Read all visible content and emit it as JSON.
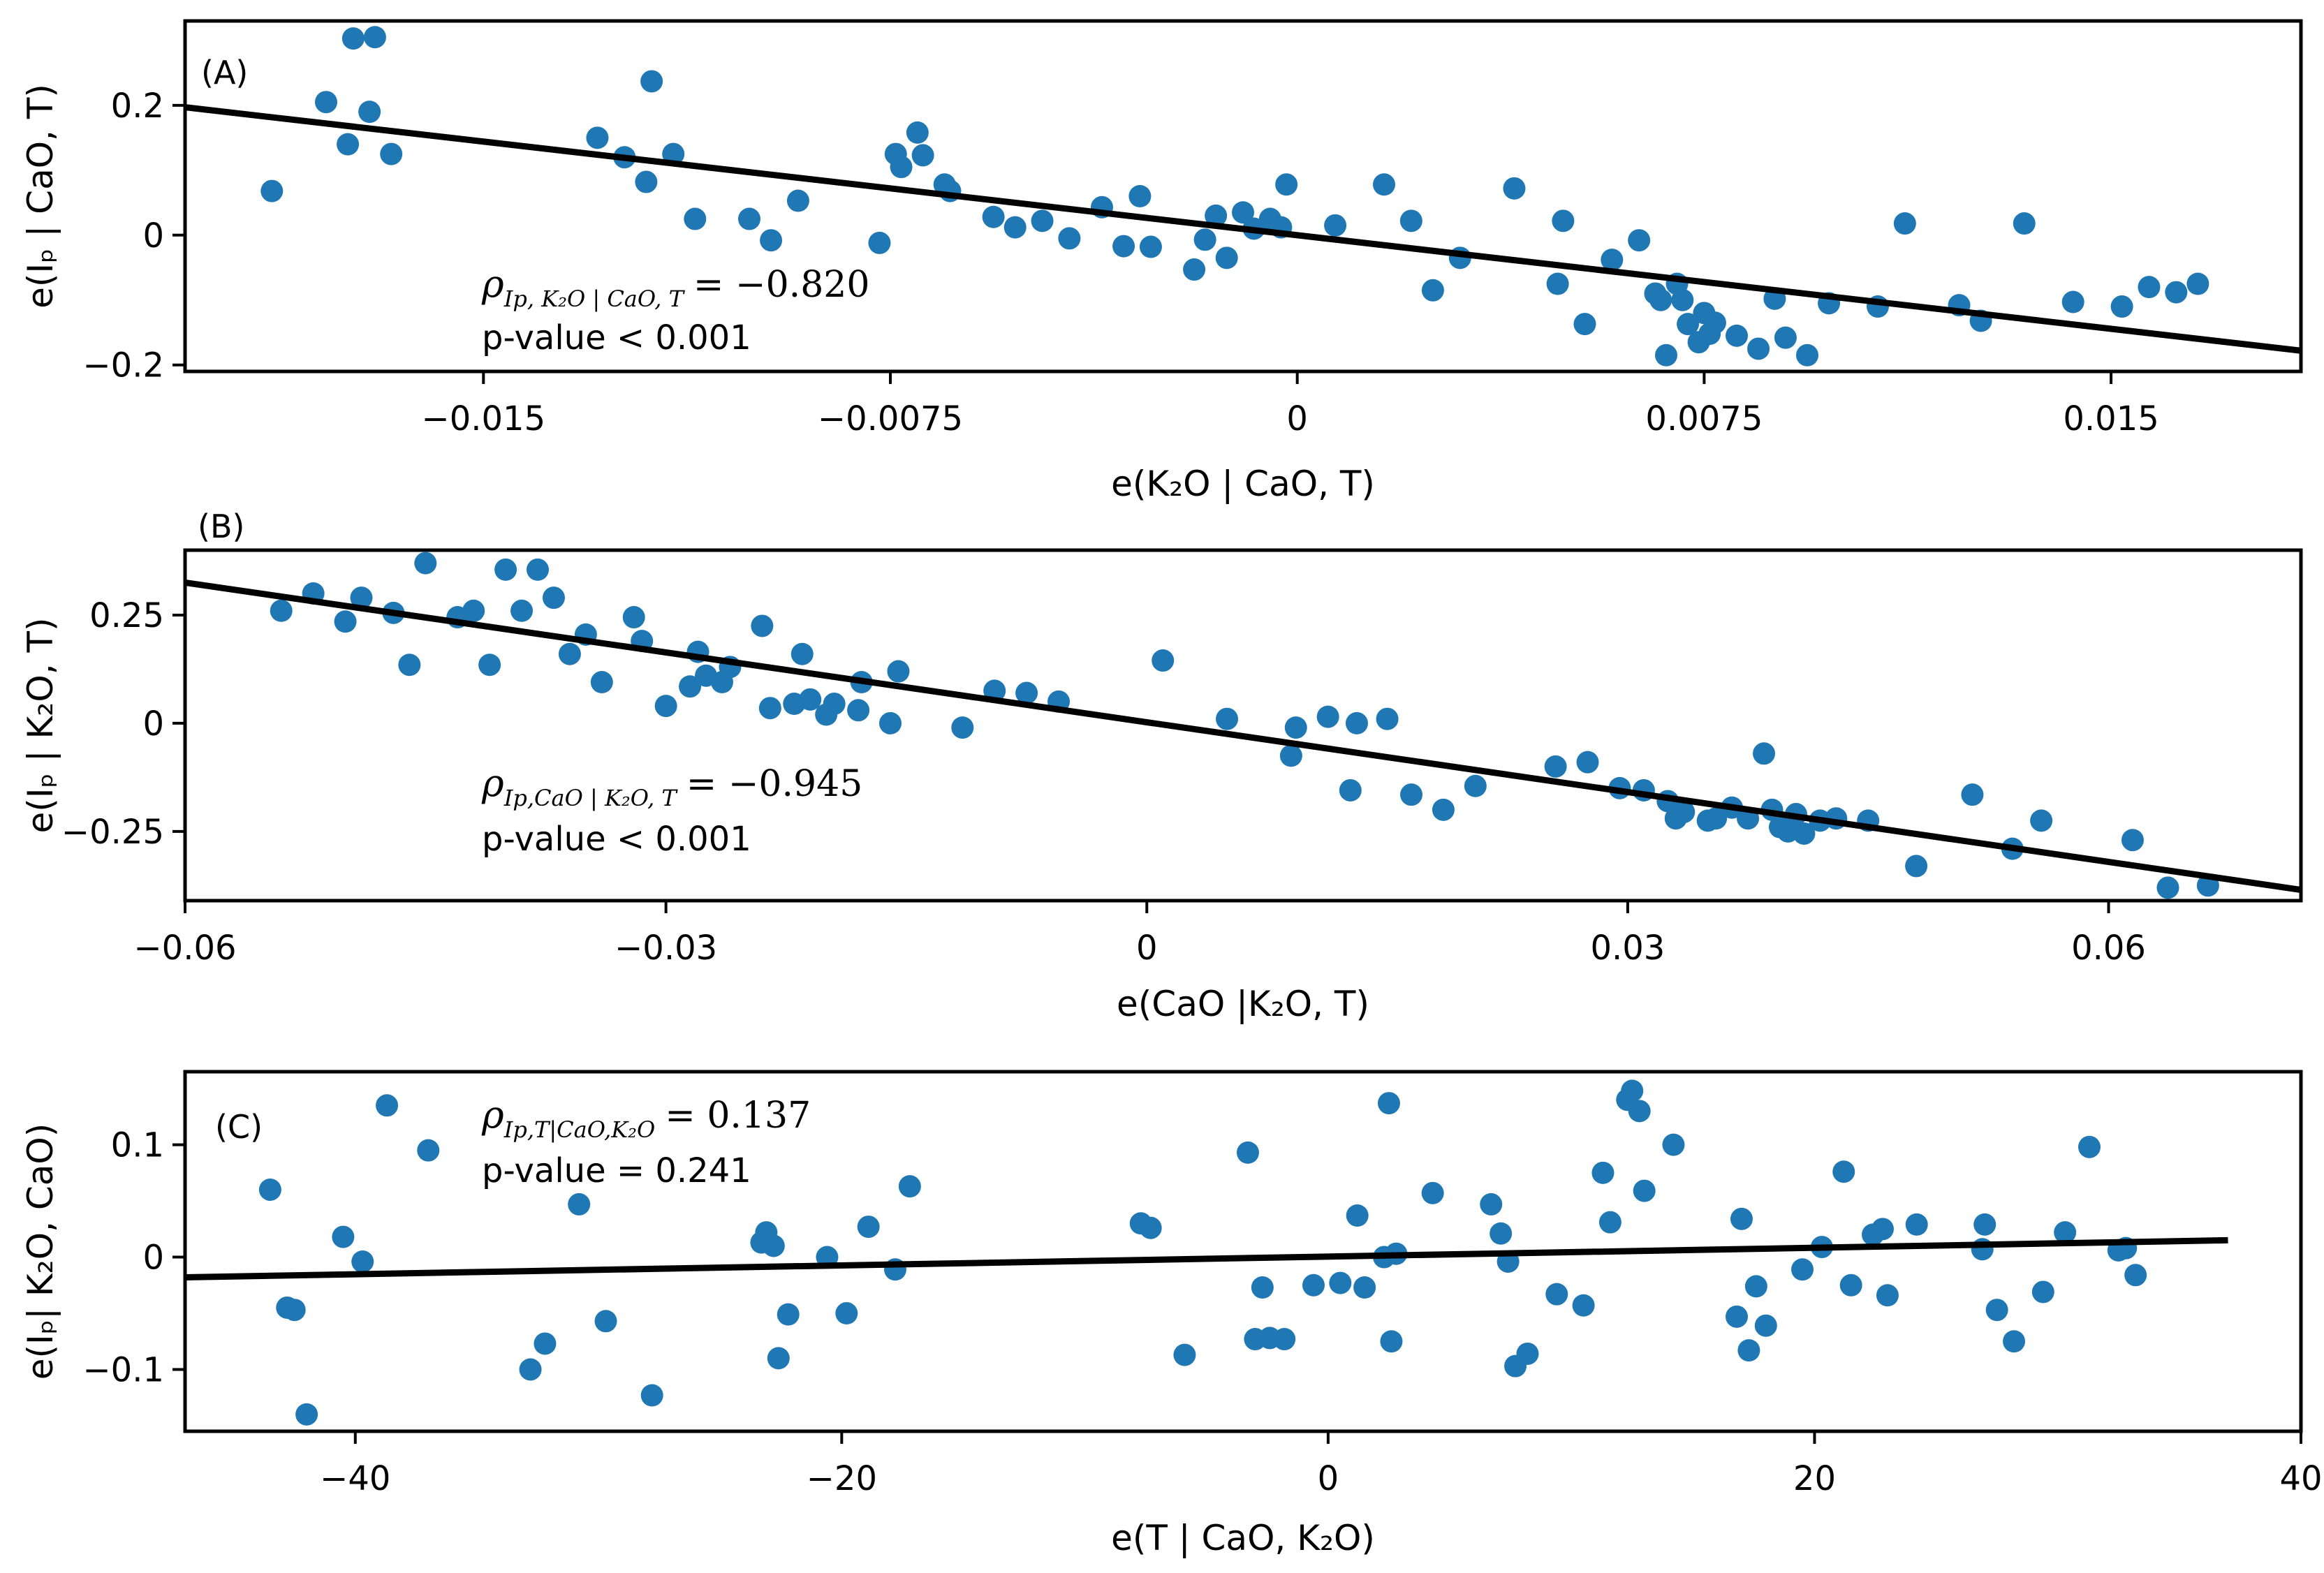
{
  "chart_data": [
    {
      "type": "scatter",
      "panel_label": "(A)",
      "xlabel": "e(K₂O | CaO, T)",
      "ylabel": "e(Iₚ | CaO, T)",
      "xlim": [
        -0.0205,
        0.0185
      ],
      "ylim": [
        -0.21,
        0.33
      ],
      "xticks": [
        -0.015,
        -0.0075,
        0,
        0.0075,
        0.015
      ],
      "xtick_labels": [
        "−0.015",
        "−0.0075",
        "0",
        "0.0075",
        "0.015"
      ],
      "yticks": [
        -0.2,
        0,
        0.2
      ],
      "ytick_labels": [
        "−0.2",
        "0",
        "0.2"
      ],
      "rho_symbol": "ρ",
      "rho_subscript": "Ip, K₂O | CaO, T",
      "rho_value": "= −0.820",
      "p_value": "p-value < 0.001",
      "fit": {
        "x": [
          -0.0205,
          0.0185
        ],
        "y": [
          0.197,
          -0.178
        ]
      },
      "points": [
        [
          -0.0189,
          0.068
        ],
        [
          -0.0179,
          0.205
        ],
        [
          -0.0175,
          0.14
        ],
        [
          -0.0174,
          0.303
        ],
        [
          -0.0171,
          0.19
        ],
        [
          -0.017,
          0.305
        ],
        [
          -0.0167,
          0.125
        ],
        [
          -0.0129,
          0.15
        ],
        [
          -0.0124,
          0.12
        ],
        [
          -0.012,
          0.082
        ],
        [
          -0.0119,
          0.237
        ],
        [
          -0.0115,
          0.125
        ],
        [
          -0.0111,
          0.025
        ],
        [
          -0.0101,
          0.025
        ],
        [
          -0.0097,
          -0.008
        ],
        [
          -0.0092,
          0.053
        ],
        [
          -0.0077,
          -0.012
        ],
        [
          -0.0074,
          0.125
        ],
        [
          -0.0073,
          0.105
        ],
        [
          -0.007,
          0.158
        ],
        [
          -0.0069,
          0.123
        ],
        [
          -0.0065,
          0.078
        ],
        [
          -0.0064,
          0.068
        ],
        [
          -0.0056,
          0.028
        ],
        [
          -0.0052,
          0.012
        ],
        [
          -0.0047,
          0.022
        ],
        [
          -0.0042,
          -0.005
        ],
        [
          -0.0036,
          0.043
        ],
        [
          -0.0032,
          -0.017
        ],
        [
          -0.0029,
          0.06
        ],
        [
          -0.0027,
          -0.018
        ],
        [
          -0.0019,
          -0.053
        ],
        [
          -0.0017,
          -0.007
        ],
        [
          -0.0015,
          0.03
        ],
        [
          -0.0013,
          -0.035
        ],
        [
          -0.001,
          0.035
        ],
        [
          -0.0008,
          0.01
        ],
        [
          -0.0005,
          0.025
        ],
        [
          -0.0003,
          0.012
        ],
        [
          -0.0002,
          0.078
        ],
        [
          0.0007,
          0.015
        ],
        [
          0.0016,
          0.078
        ],
        [
          0.0021,
          0.022
        ],
        [
          0.0025,
          -0.085
        ],
        [
          0.003,
          -0.035
        ],
        [
          0.004,
          0.072
        ],
        [
          0.0048,
          -0.075
        ],
        [
          0.0049,
          0.022
        ],
        [
          0.0053,
          -0.137
        ],
        [
          0.0058,
          -0.038
        ],
        [
          0.0063,
          -0.008
        ],
        [
          0.0066,
          -0.09
        ],
        [
          0.0067,
          -0.1
        ],
        [
          0.0068,
          -0.185
        ],
        [
          0.007,
          -0.075
        ],
        [
          0.0071,
          -0.1
        ],
        [
          0.0072,
          -0.137
        ],
        [
          0.0074,
          -0.165
        ],
        [
          0.0075,
          -0.12
        ],
        [
          0.0076,
          -0.152
        ],
        [
          0.0077,
          -0.135
        ],
        [
          0.0081,
          -0.155
        ],
        [
          0.0085,
          -0.175
        ],
        [
          0.0088,
          -0.098
        ],
        [
          0.009,
          -0.158
        ],
        [
          0.0094,
          -0.185
        ],
        [
          0.0098,
          -0.105
        ],
        [
          0.0107,
          -0.11
        ],
        [
          0.0112,
          0.018
        ],
        [
          0.0122,
          -0.108
        ],
        [
          0.0126,
          -0.132
        ],
        [
          0.0134,
          0.018
        ],
        [
          0.0143,
          -0.103
        ],
        [
          0.0152,
          -0.11
        ],
        [
          0.0157,
          -0.08
        ],
        [
          0.0162,
          -0.088
        ],
        [
          0.0166,
          -0.075
        ]
      ]
    },
    {
      "type": "scatter",
      "panel_label": "(B)",
      "xlabel": "e(CaO |K₂O,  T)",
      "ylabel": "e(Iₚ | K₂O, T)",
      "xlim": [
        -0.06,
        0.072
      ],
      "ylim": [
        -0.41,
        0.4
      ],
      "xticks": [
        -0.06,
        -0.03,
        0,
        0.03,
        0.06
      ],
      "xtick_labels": [
        "−0.06",
        "−0.03",
        "0",
        "0.03",
        "0.06"
      ],
      "yticks": [
        -0.25,
        0,
        0.25
      ],
      "ytick_labels": [
        "−0.25",
        "0",
        "0.25"
      ],
      "rho_symbol": "ρ",
      "rho_subscript": "Ip,CaO | K₂O, T",
      "rho_value": "= −0.945",
      "p_value": "p-value < 0.001",
      "fit": {
        "x": [
          -0.06,
          0.072
        ],
        "y": [
          0.325,
          -0.385
        ]
      },
      "points": [
        [
          -0.054,
          0.26
        ],
        [
          -0.052,
          0.3
        ],
        [
          -0.05,
          0.235
        ],
        [
          -0.049,
          0.29
        ],
        [
          -0.047,
          0.255
        ],
        [
          -0.046,
          0.135
        ],
        [
          -0.045,
          0.37
        ],
        [
          -0.043,
          0.245
        ],
        [
          -0.042,
          0.26
        ],
        [
          -0.041,
          0.135
        ],
        [
          -0.04,
          0.355
        ],
        [
          -0.039,
          0.26
        ],
        [
          -0.038,
          0.355
        ],
        [
          -0.037,
          0.29
        ],
        [
          -0.036,
          0.16
        ],
        [
          -0.035,
          0.205
        ],
        [
          -0.034,
          0.095
        ],
        [
          -0.032,
          0.245
        ],
        [
          -0.0315,
          0.19
        ],
        [
          -0.03,
          0.04
        ],
        [
          -0.0285,
          0.085
        ],
        [
          -0.028,
          0.165
        ],
        [
          -0.0275,
          0.11
        ],
        [
          -0.0265,
          0.095
        ],
        [
          -0.026,
          0.13
        ],
        [
          -0.024,
          0.225
        ],
        [
          -0.0235,
          0.035
        ],
        [
          -0.022,
          0.045
        ],
        [
          -0.0215,
          0.16
        ],
        [
          -0.021,
          0.055
        ],
        [
          -0.02,
          0.02
        ],
        [
          -0.0195,
          0.045
        ],
        [
          -0.018,
          0.03
        ],
        [
          -0.0178,
          0.095
        ],
        [
          -0.016,
          0.0
        ],
        [
          -0.0155,
          0.12
        ],
        [
          -0.0115,
          -0.01
        ],
        [
          -0.0095,
          0.075
        ],
        [
          -0.0075,
          0.07
        ],
        [
          -0.0055,
          0.05
        ],
        [
          0.001,
          0.145
        ],
        [
          0.005,
          0.01
        ],
        [
          0.009,
          -0.075
        ],
        [
          0.0093,
          -0.01
        ],
        [
          0.0113,
          0.015
        ],
        [
          0.0127,
          -0.155
        ],
        [
          0.0131,
          0.0
        ],
        [
          0.015,
          0.01
        ],
        [
          0.0165,
          -0.165
        ],
        [
          0.0185,
          -0.2
        ],
        [
          0.0205,
          -0.145
        ],
        [
          0.0255,
          -0.1
        ],
        [
          0.0275,
          -0.09
        ],
        [
          0.0295,
          -0.15
        ],
        [
          0.031,
          -0.155
        ],
        [
          0.0325,
          -0.18
        ],
        [
          0.033,
          -0.22
        ],
        [
          0.0335,
          -0.205
        ],
        [
          0.035,
          -0.225
        ],
        [
          0.0355,
          -0.22
        ],
        [
          0.0365,
          -0.195
        ],
        [
          0.0375,
          -0.22
        ],
        [
          0.0385,
          -0.07
        ],
        [
          0.039,
          -0.2
        ],
        [
          0.0395,
          -0.24
        ],
        [
          0.04,
          -0.25
        ],
        [
          0.0405,
          -0.21
        ],
        [
          0.041,
          -0.255
        ],
        [
          0.042,
          -0.225
        ],
        [
          0.043,
          -0.22
        ],
        [
          0.045,
          -0.225
        ],
        [
          0.048,
          -0.33
        ],
        [
          0.0515,
          -0.165
        ],
        [
          0.054,
          -0.29
        ],
        [
          0.0558,
          -0.225
        ],
        [
          0.0615,
          -0.27
        ],
        [
          0.0637,
          -0.38
        ],
        [
          0.0662,
          -0.375
        ]
      ]
    },
    {
      "type": "scatter",
      "panel_label": "(C)",
      "xlabel": "e(T | CaO, K₂O)",
      "ylabel": "e(Iₚ| K₂O, CaO)",
      "xlim": [
        -47,
        40
      ],
      "ylim": [
        -0.155,
        0.165
      ],
      "xticks": [
        -40,
        -20,
        0,
        20,
        40
      ],
      "xtick_labels": [
        "−40",
        "−20",
        "0",
        "20",
        "40"
      ],
      "yticks": [
        -0.1,
        0,
        0.1
      ],
      "ytick_labels": [
        "−0.1",
        "0",
        "0.1"
      ],
      "rho_symbol": "ρ",
      "rho_subscript": "Ip,T|CaO,K₂O",
      "rho_value": "= 0.137",
      "p_value": "p-value = 0.241",
      "fit": {
        "x": [
          -47,
          37
        ],
        "y": [
          -0.018,
          0.015
        ]
      },
      "points": [
        [
          -43.5,
          0.06
        ],
        [
          -42.8,
          -0.045
        ],
        [
          -42.5,
          -0.047
        ],
        [
          -42.0,
          -0.14
        ],
        [
          -40.5,
          0.018
        ],
        [
          -39.7,
          -0.004
        ],
        [
          -38.7,
          0.135
        ],
        [
          -37.0,
          0.095
        ],
        [
          -32.8,
          -0.1
        ],
        [
          -32.2,
          -0.077
        ],
        [
          -30.8,
          0.047
        ],
        [
          -29.7,
          -0.057
        ],
        [
          -27.8,
          -0.123
        ],
        [
          -23.3,
          0.013
        ],
        [
          -23.1,
          0.022
        ],
        [
          -22.8,
          0.01
        ],
        [
          -22.6,
          -0.09
        ],
        [
          -22.2,
          -0.051
        ],
        [
          -20.6,
          0.0
        ],
        [
          -19.8,
          -0.05
        ],
        [
          -18.9,
          0.027
        ],
        [
          -17.8,
          -0.011
        ],
        [
          -17.2,
          0.063
        ],
        [
          -7.7,
          0.03
        ],
        [
          -7.3,
          0.026
        ],
        [
          -5.9,
          -0.087
        ],
        [
          -3.3,
          0.093
        ],
        [
          -3.0,
          -0.073
        ],
        [
          -2.7,
          -0.027
        ],
        [
          -2.4,
          -0.072
        ],
        [
          -1.8,
          -0.073
        ],
        [
          -0.6,
          -0.025
        ],
        [
          0.5,
          -0.023
        ],
        [
          1.2,
          0.037
        ],
        [
          1.5,
          -0.027
        ],
        [
          2.3,
          0.0
        ],
        [
          2.5,
          0.137
        ],
        [
          2.6,
          -0.075
        ],
        [
          2.8,
          0.003
        ],
        [
          4.3,
          0.057
        ],
        [
          6.7,
          0.047
        ],
        [
          7.1,
          0.021
        ],
        [
          7.4,
          -0.004
        ],
        [
          7.7,
          -0.097
        ],
        [
          8.2,
          -0.086
        ],
        [
          9.4,
          -0.033
        ],
        [
          10.5,
          -0.043
        ],
        [
          11.3,
          0.075
        ],
        [
          11.6,
          0.031
        ],
        [
          12.3,
          0.14
        ],
        [
          12.5,
          0.148
        ],
        [
          12.8,
          0.13
        ],
        [
          13.0,
          0.059
        ],
        [
          14.2,
          0.1
        ],
        [
          16.8,
          -0.053
        ],
        [
          17.0,
          0.034
        ],
        [
          17.3,
          -0.083
        ],
        [
          17.6,
          -0.026
        ],
        [
          18.0,
          -0.061
        ],
        [
          19.5,
          -0.011
        ],
        [
          20.3,
          0.009
        ],
        [
          21.2,
          0.076
        ],
        [
          21.5,
          -0.025
        ],
        [
          22.4,
          0.02
        ],
        [
          22.8,
          0.025
        ],
        [
          23.0,
          -0.034
        ],
        [
          24.2,
          0.029
        ],
        [
          26.9,
          0.007
        ],
        [
          27.0,
          0.029
        ],
        [
          27.5,
          -0.047
        ],
        [
          28.2,
          -0.075
        ],
        [
          29.4,
          -0.031
        ],
        [
          30.3,
          0.022
        ],
        [
          31.3,
          0.098
        ],
        [
          32.5,
          0.006
        ],
        [
          32.8,
          0.008
        ],
        [
          33.2,
          -0.016
        ]
      ]
    }
  ]
}
